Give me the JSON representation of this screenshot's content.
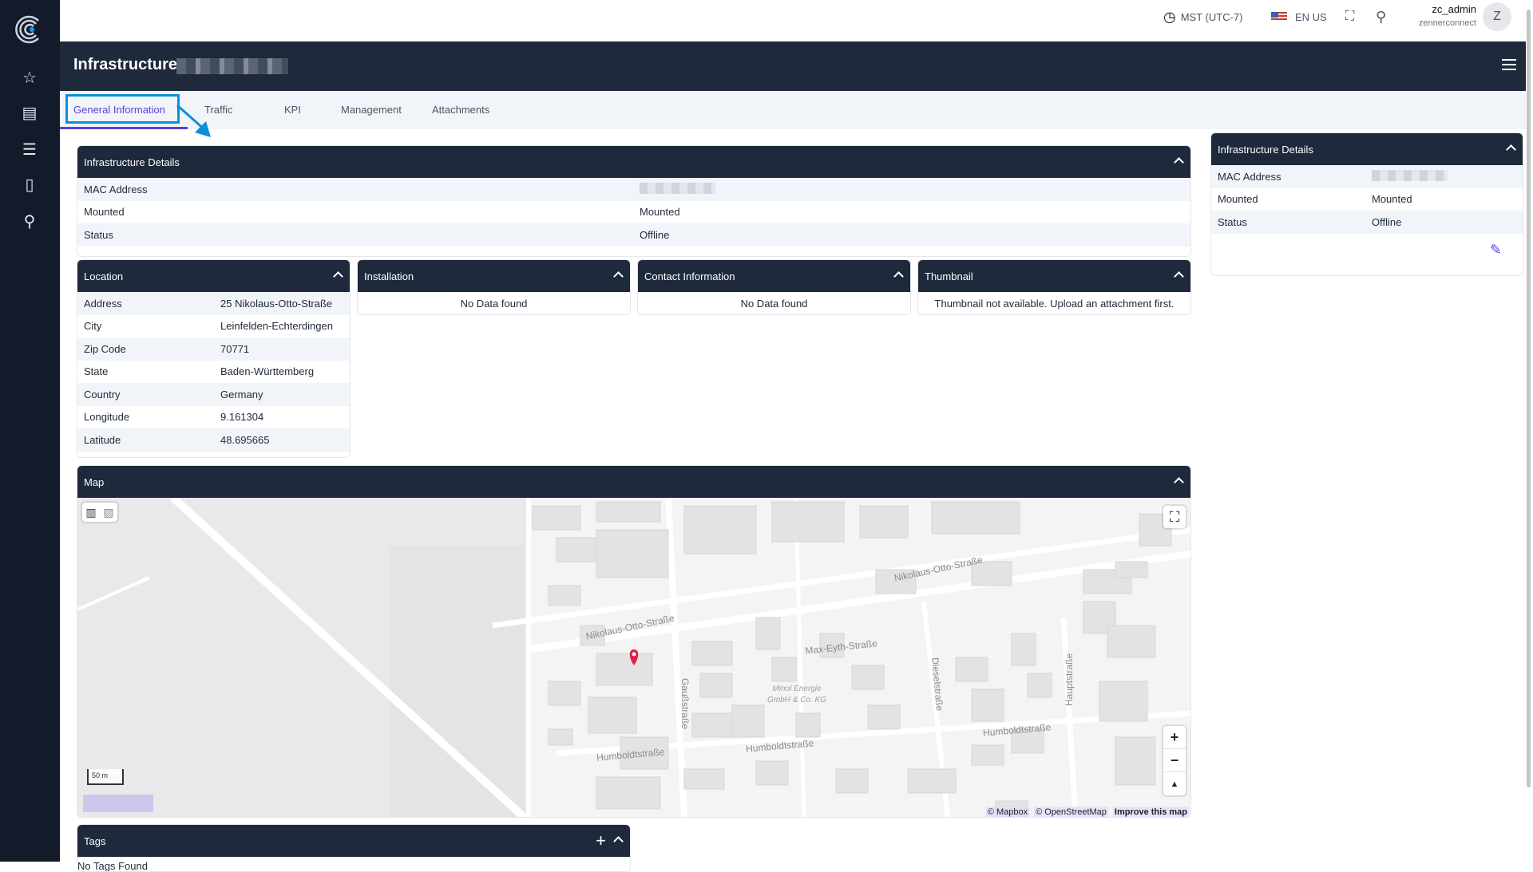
{
  "topbar": {
    "timezone": "MST (UTC-7)",
    "language": "EN US",
    "user_name": "zc_admin",
    "user_org": "zennerconnect",
    "avatar_initial": "Z"
  },
  "header": {
    "title": "Infrastructure"
  },
  "tabs": [
    {
      "label": "General Information",
      "active": true
    },
    {
      "label": "Traffic"
    },
    {
      "label": "KPI"
    },
    {
      "label": "Management"
    },
    {
      "label": "Attachments"
    }
  ],
  "details": {
    "title": "Infrastructure Details",
    "rows": [
      {
        "label": "MAC Address",
        "value": ""
      },
      {
        "label": "Mounted",
        "value": "Mounted"
      },
      {
        "label": "Status",
        "value": "Offline"
      }
    ]
  },
  "location": {
    "title": "Location",
    "rows": [
      {
        "label": "Address",
        "value": "25 Nikolaus-Otto-Straße"
      },
      {
        "label": "City",
        "value": "Leinfelden-Echterdingen"
      },
      {
        "label": "Zip Code",
        "value": "70771"
      },
      {
        "label": "State",
        "value": "Baden-Württemberg"
      },
      {
        "label": "Country",
        "value": "Germany"
      },
      {
        "label": "Longitude",
        "value": "9.161304"
      },
      {
        "label": "Latitude",
        "value": "48.695665"
      }
    ]
  },
  "installation": {
    "title": "Installation",
    "empty": "No Data found"
  },
  "contact": {
    "title": "Contact Information",
    "empty": "No Data found"
  },
  "thumbnail": {
    "title": "Thumbnail",
    "empty": "Thumbnail not available. Upload an attachment first."
  },
  "map": {
    "title": "Map",
    "scale": "50 m",
    "attribution": [
      "© Mapbox",
      "© OpenStreetMap",
      "Improve this map"
    ],
    "labels": [
      "Nikolaus-Otto-Straße",
      "Nikolaus-Otto-Straße",
      "Max-Eyth-Straße",
      "Gaußstraße",
      "Dieselstraße",
      "Hauptstraße",
      "Humboldtstraße",
      "Humboldtstraße",
      "Humboldtstraße",
      "Minol Energie",
      "GmbH & Co. KG"
    ],
    "pin_color": "#e11d48"
  },
  "tags": {
    "title": "Tags",
    "empty": "No Tags Found"
  },
  "side": {
    "title": "Infrastructure Details",
    "rows": [
      {
        "label": "MAC Address",
        "value": ""
      },
      {
        "label": "Mounted",
        "value": "Mounted"
      },
      {
        "label": "Status",
        "value": "Offline"
      }
    ]
  },
  "colors": {
    "accent": "#5b3fd9",
    "header": "#1e293b",
    "sidebar": "#131b2b",
    "highlight": "#0b8fd6"
  }
}
